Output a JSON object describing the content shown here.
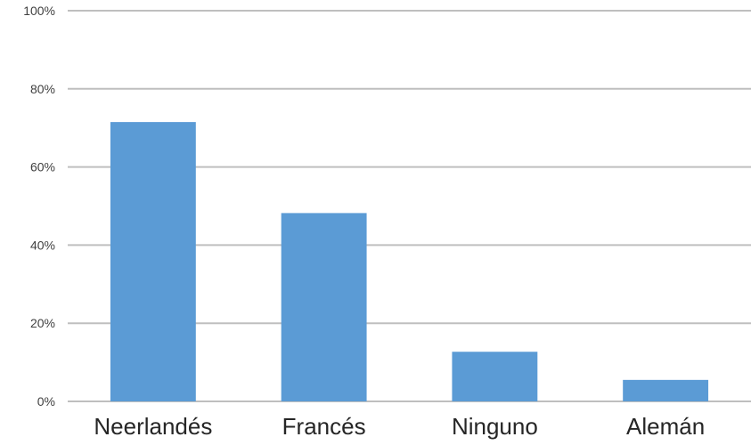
{
  "chart_data": {
    "type": "bar",
    "categories": [
      "Neerlandés",
      "Francés",
      "Ninguno",
      "Alemán"
    ],
    "values": [
      71.5,
      48.2,
      12.7,
      5.5
    ],
    "title": "",
    "xlabel": "",
    "ylabel": "",
    "ylim": [
      0,
      100
    ],
    "yticks": [
      "0%",
      "20%",
      "40%",
      "60%",
      "80%",
      "100%"
    ],
    "grid": true,
    "legend": "none",
    "colors": {
      "bar": "#5b9bd5",
      "grid": "#bfbfbf"
    }
  }
}
